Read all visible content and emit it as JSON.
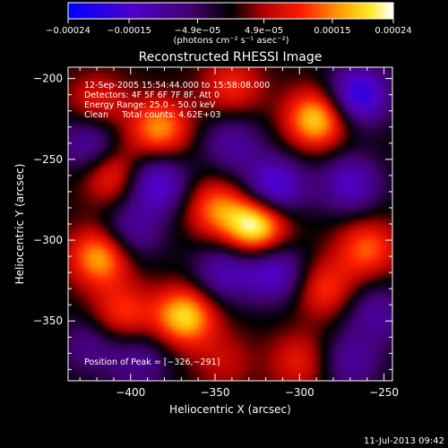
{
  "chart_data": {
    "type": "heatmap",
    "title": "Reconstructed RHESSI Image",
    "xlabel": "Heliocentric X (arcsec)",
    "ylabel": "Heliocentric Y (arcsec)",
    "xlim": [
      -437,
      -245
    ],
    "ylim": [
      -387,
      -193
    ],
    "x_ticks": [
      -400,
      -350,
      -300,
      -250
    ],
    "y_ticks": [
      -200,
      -250,
      -300,
      -350
    ],
    "x_tick_labels": [
      "−400",
      "−350",
      "−300",
      "−250"
    ],
    "y_tick_labels": [
      "−200",
      "−250",
      "−300",
      "−350"
    ],
    "colorbar": {
      "range": [
        -0.00024,
        0.00024
      ],
      "tick_values": [
        -0.00024,
        -0.00015,
        -4.9e-05,
        4.9e-05,
        0.00015,
        0.00024
      ],
      "tick_labels": [
        "−0.00024",
        "−0.00015",
        "−4.9e−05",
        "4.9e−05",
        "0.00015",
        "0.00024"
      ],
      "unit_label": "(photons cm⁻² s⁻¹ asec⁻²)"
    },
    "annotations": [
      "12-Sep-2005 15:54:44.000 to 15:58:08.000",
      "Detectors: 4F 5F 6F 7F 8F, Att 0",
      "Energy Range: 25.0 – 50.0 keV",
      "Clean     Total counts: 4.62E+03"
    ],
    "peak_label": "Position of Peak = [−326,−291]",
    "peak": [
      -326,
      -291
    ],
    "sources": [
      {
        "x": -326,
        "y": -291,
        "value": 0.00024
      },
      {
        "x": -290,
        "y": -225,
        "value": 0.0002
      },
      {
        "x": -383,
        "y": -231,
        "value": 0.00016
      },
      {
        "x": -410,
        "y": -260,
        "value": 0.00012
      },
      {
        "x": -418,
        "y": -310,
        "value": 0.00018
      },
      {
        "x": -350,
        "y": -280,
        "value": 0.00013
      },
      {
        "x": -368,
        "y": -347,
        "value": 0.0002
      },
      {
        "x": -405,
        "y": -345,
        "value": 0.00011
      },
      {
        "x": -260,
        "y": -305,
        "value": 0.00013
      },
      {
        "x": -285,
        "y": -330,
        "value": 0.00011
      },
      {
        "x": -340,
        "y": -205,
        "value": 0.0001
      },
      {
        "x": -300,
        "y": -375,
        "value": 9e-05
      },
      {
        "x": -420,
        "y": -215,
        "value": 9e-05
      },
      {
        "x": -345,
        "y": -375,
        "value": 6e-05
      },
      {
        "x": -265,
        "y": -210,
        "value": -0.0002
      },
      {
        "x": -385,
        "y": -265,
        "value": -0.00017
      },
      {
        "x": -315,
        "y": -267,
        "value": -0.00018
      },
      {
        "x": -425,
        "y": -240,
        "value": -0.00012
      },
      {
        "x": -315,
        "y": -320,
        "value": -0.00015
      },
      {
        "x": -345,
        "y": -320,
        "value": -0.00012
      },
      {
        "x": -400,
        "y": -295,
        "value": -0.00011
      },
      {
        "x": -270,
        "y": -265,
        "value": -0.00014
      },
      {
        "x": -255,
        "y": -345,
        "value": -0.0001
      },
      {
        "x": -270,
        "y": -375,
        "value": -0.0001
      },
      {
        "x": -340,
        "y": -240,
        "value": -0.0001
      },
      {
        "x": -395,
        "y": -375,
        "value": -9e-05
      },
      {
        "x": -425,
        "y": -365,
        "value": -8e-05
      }
    ]
  },
  "footer": {
    "timestamp": "11-Jul-2013 09:42"
  }
}
